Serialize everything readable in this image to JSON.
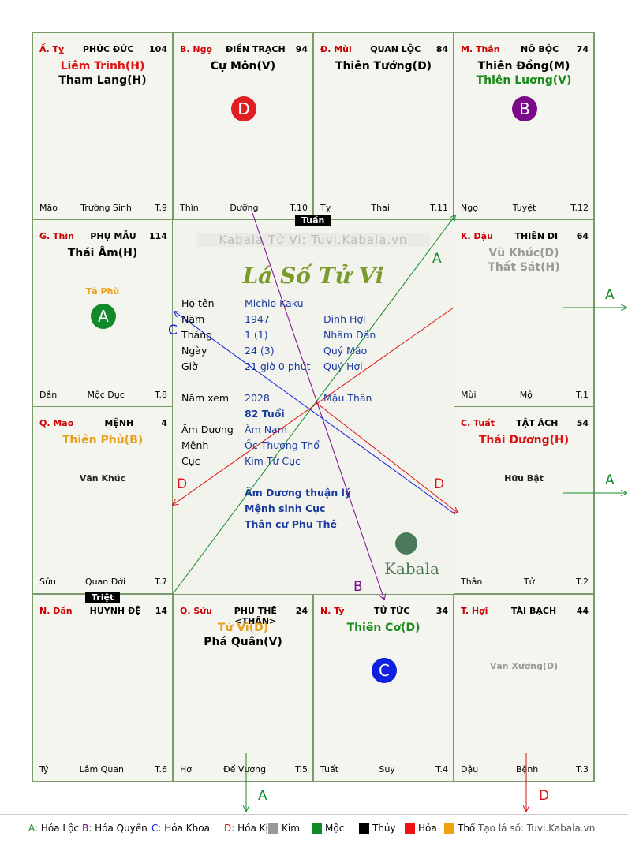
{
  "watermark": "Kabala Tử Vi: Tuvi.Kabala.vn",
  "center_title": "Lá Số Tử Vi",
  "logo_text": "Kabala",
  "tuan_label": "Tuần",
  "triet_label": "Triệt",
  "palaces": [
    {
      "can": "Ấ. Tỵ",
      "name": "PHÚC ĐỨC",
      "num": "104",
      "stars": [
        {
          "t": "Liêm Trinh(H)",
          "c": "#d11"
        },
        {
          "t": "Tham Lang(H)",
          "c": "#000"
        }
      ],
      "minor": [],
      "foot": [
        "Mão",
        "Trường Sinh",
        "T.9"
      ]
    },
    {
      "can": "B. Ngọ",
      "name": "ĐIỀN TRẠCH",
      "num": "94",
      "stars": [
        {
          "t": "Cự Môn(V)",
          "c": "#000"
        }
      ],
      "minor": [],
      "badge": {
        "l": "D",
        "c": "#e02020"
      },
      "foot": [
        "Thìn",
        "Dưỡng",
        "T.10"
      ]
    },
    {
      "can": "Đ. Mùi",
      "name": "QUAN LỘC",
      "num": "84",
      "stars": [
        {
          "t": "Thiên Tướng(D)",
          "c": "#000"
        }
      ],
      "minor": [],
      "foot": [
        "Tỵ",
        "Thai",
        "T.11"
      ]
    },
    {
      "can": "M. Thân",
      "name": "NÔ BỘC",
      "num": "74",
      "stars": [
        {
          "t": "Thiên Đồng(M)",
          "c": "#000"
        },
        {
          "t": "Thiên Lương(V)",
          "c": "#1a8a1a"
        }
      ],
      "minor": [],
      "badge": {
        "l": "B",
        "c": "#7a0a8a"
      },
      "foot": [
        "Ngọ",
        "Tuyệt",
        "T.12"
      ]
    },
    {
      "can": "G. Thìn",
      "name": "PHỤ MẪU",
      "num": "114",
      "stars": [
        {
          "t": "Thái Âm(H)",
          "c": "#000"
        }
      ],
      "minor": [
        {
          "t": "Tả Phù",
          "c": "#e6a020"
        }
      ],
      "badge": {
        "l": "A",
        "c": "#118a2a"
      },
      "foot": [
        "Dần",
        "Mộc Dục",
        "T.8"
      ]
    },
    {
      "can": "K. Dậu",
      "name": "THIÊN DI",
      "num": "64",
      "stars": [
        {
          "t": "Vũ Khúc(D)",
          "c": "#999"
        },
        {
          "t": "Thất Sát(H)",
          "c": "#999"
        }
      ],
      "minor": [],
      "foot": [
        "Mùi",
        "Mộ",
        "T.1"
      ]
    },
    {
      "can": "Q. Mão",
      "name": "MỆNH",
      "num": "4",
      "stars": [
        {
          "t": "Thiên Phủ(B)",
          "c": "#e6a020"
        }
      ],
      "minor": [
        {
          "t": "Văn Khúc",
          "c": "#222"
        }
      ],
      "foot": [
        "Sửu",
        "Quan Đới",
        "T.7"
      ]
    },
    {
      "can": "C. Tuất",
      "name": "TẬT ÁCH",
      "num": "54",
      "stars": [
        {
          "t": "Thái Dương(H)",
          "c": "#d11"
        }
      ],
      "minor": [
        {
          "t": "Hữu Bật",
          "c": "#222"
        }
      ],
      "foot": [
        "Thân",
        "Tử",
        "T.2"
      ]
    },
    {
      "can": "N. Dần",
      "name": "HUYNH ĐỆ",
      "num": "14",
      "stars": [],
      "minor": [],
      "foot": [
        "Tý",
        "Lâm Quan",
        "T.6"
      ]
    },
    {
      "can": "Q. Sửu",
      "name": "PHU THÊ <THÂN>",
      "num": "24",
      "stars": [
        {
          "t": "Tử Vi(D)",
          "c": "#e6a020"
        },
        {
          "t": "Phá Quân(V)",
          "c": "#000"
        }
      ],
      "minor": [],
      "foot": [
        "Hợi",
        "Đế Vượng",
        "T.5"
      ]
    },
    {
      "can": "N. Tý",
      "name": "TỬ TỨC",
      "num": "34",
      "stars": [
        {
          "t": "Thiên Cơ(D)",
          "c": "#1a8a1a"
        }
      ],
      "minor": [],
      "badge": {
        "l": "C",
        "c": "#1020e0"
      },
      "foot": [
        "Tuất",
        "Suy",
        "T.4"
      ]
    },
    {
      "can": "T. Hợi",
      "name": "TÀI BẠCH",
      "num": "44",
      "stars": [],
      "minor": [
        {
          "t": "Văn Xương(D)",
          "c": "#999"
        }
      ],
      "foot": [
        "Dậu",
        "Bệnh",
        "T.3"
      ]
    }
  ],
  "info": {
    "rows": [
      {
        "l": "Họ tên",
        "v": "Michio Kaku",
        "v2": ""
      },
      {
        "l": "Năm",
        "v": "1947",
        "v2": "Đinh Hợi"
      },
      {
        "l": "Tháng",
        "v": "1  (1)",
        "v2": "Nhâm Dần"
      },
      {
        "l": "Ngày",
        "v": "24  (3)",
        "v2": "Quý Mão"
      },
      {
        "l": "Giờ",
        "v": "21 giờ 0 phút",
        "v2": "Quý Hợi"
      },
      {
        "l": "Năm xem",
        "v": "2028",
        "v2": "Mậu Thân"
      },
      {
        "l": "",
        "v": "82 Tuổi",
        "v2": ""
      },
      {
        "l": "Âm Dương",
        "v": "Âm Nam",
        "v2": ""
      },
      {
        "l": "Mệnh",
        "v": "Ốc Thượng Thổ",
        "v2": ""
      },
      {
        "l": "Cục",
        "v": "Kim Tứ Cục",
        "v2": ""
      }
    ],
    "notes": [
      "Âm Dương thuận lý",
      "Mệnh sinh Cục",
      "Thân cư Phu Thê"
    ]
  },
  "arrow_labels": {
    "a": "A",
    "b": "B",
    "c": "C",
    "d": "D"
  },
  "legend": {
    "items": [
      {
        "k": "A",
        "t": ": Hóa Lộc",
        "c": "#118a2a"
      },
      {
        "k": "B",
        "t": ": Hóa Quyền",
        "c": "#7a0a8a"
      },
      {
        "k": "C",
        "t": ": Hóa Khoa",
        "c": "#1020e0"
      },
      {
        "k": "D",
        "t": ": Hóa Kị",
        "c": "#d11"
      }
    ],
    "elements": [
      {
        "t": "Kim",
        "c": "#999999"
      },
      {
        "t": "Mộc",
        "c": "#118a2a"
      },
      {
        "t": "Thủy",
        "c": "#000000"
      },
      {
        "t": "Hỏa",
        "c": "#ee1111"
      },
      {
        "t": "Thổ",
        "c": "#f0a010"
      }
    ],
    "credit": "Tạo lá số: Tuvi.Kabala.vn"
  }
}
